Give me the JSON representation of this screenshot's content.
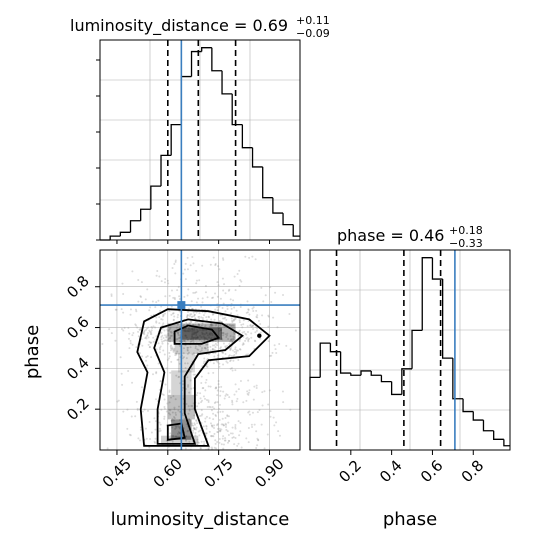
{
  "chart_data": [
    {
      "panel": "luminosity_distance marginal",
      "type": "histogram",
      "title_param": "luminosity_distance",
      "title_median": "0.69",
      "title_plus": "+0.11",
      "title_minus": "−0.09",
      "x_range": [
        0.4,
        0.99
      ],
      "bin_edges": [
        0.4,
        0.43,
        0.46,
        0.49,
        0.52,
        0.55,
        0.58,
        0.61,
        0.64,
        0.67,
        0.7,
        0.73,
        0.76,
        0.79,
        0.82,
        0.85,
        0.88,
        0.91,
        0.94,
        0.97,
        0.99
      ],
      "counts": [
        0,
        2,
        4,
        10,
        16,
        28,
        44,
        60,
        85,
        98,
        100,
        88,
        76,
        60,
        48,
        38,
        22,
        14,
        8,
        2
      ],
      "quantiles": [
        0.6,
        0.69,
        0.8
      ],
      "truth": 0.64,
      "grid": true
    },
    {
      "panel": "phase marginal",
      "type": "histogram",
      "title_param": "phase",
      "title_median": "0.46",
      "title_plus": "+0.18",
      "title_minus": "−0.33",
      "x_range": [
        0.0,
        0.98
      ],
      "bin_edges": [
        0.0,
        0.05,
        0.1,
        0.15,
        0.2,
        0.25,
        0.3,
        0.35,
        0.4,
        0.45,
        0.5,
        0.55,
        0.6,
        0.65,
        0.7,
        0.75,
        0.8,
        0.85,
        0.9,
        0.95,
        0.98
      ],
      "counts": [
        34,
        50,
        46,
        36,
        35,
        37,
        35,
        32,
        26,
        38,
        56,
        90,
        80,
        43,
        24,
        18,
        14,
        9,
        5,
        2
      ],
      "quantiles": [
        0.13,
        0.46,
        0.64
      ],
      "truth": 0.71,
      "grid": true
    },
    {
      "panel": "2D contour",
      "type": "scatter",
      "x_range": [
        0.4,
        0.99
      ],
      "y_range": [
        0.0,
        0.98
      ],
      "xticks": [
        "0.45",
        "0.60",
        "0.75",
        "0.90"
      ],
      "xtick_values": [
        0.45,
        0.6,
        0.75,
        0.9
      ],
      "yticks": [
        "0.2",
        "0.4",
        "0.6",
        "0.8"
      ],
      "ytick_values": [
        0.2,
        0.4,
        0.6,
        0.8
      ],
      "xlabel": "luminosity_distance",
      "ylabel": "phase",
      "truth": [
        0.64,
        0.71
      ],
      "grid": true
    },
    {
      "panel": "phase x-axis",
      "type": "axis",
      "xticks": [
        "0.2",
        "0.4",
        "0.6",
        "0.8"
      ],
      "xtick_values": [
        0.2,
        0.4,
        0.6,
        0.8
      ],
      "xlabel": "phase"
    }
  ],
  "colors": {
    "truth": "#3a7ebf",
    "hist": "#000000",
    "grid": "#b0b0b0",
    "quantile": "#000000"
  }
}
